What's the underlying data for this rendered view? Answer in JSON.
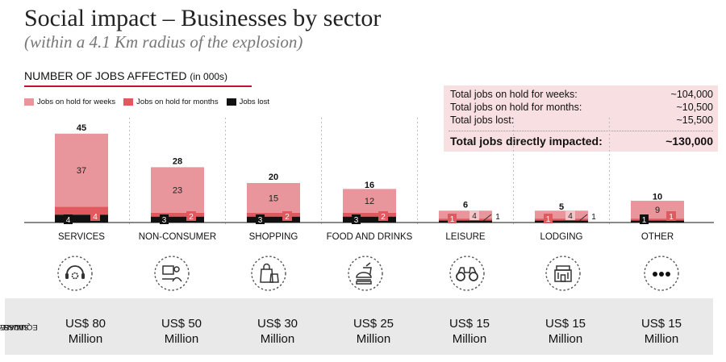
{
  "header": {
    "title": "Social impact – Businesses by sector",
    "subtitle": "(within a 4.1 Km radius of the explosion)",
    "section_label": "NUMBER OF JOBS AFFECTED",
    "section_unit": "(in 000s)"
  },
  "legend": {
    "weeks": "Jobs on hold for weeks",
    "months": "Jobs on hold for months",
    "lost": "Jobs lost"
  },
  "totals": [
    {
      "label": "Total jobs on hold for weeks:",
      "value": "~104,000"
    },
    {
      "label": "Total jobs on hold for months:",
      "value": "~10,500"
    },
    {
      "label": "Total jobs lost:",
      "value": "~15,500"
    },
    {
      "label": "Total jobs directly impacted:",
      "value": "~130,000"
    }
  ],
  "colors": {
    "weeks": "#e8959b",
    "months": "#e0595f",
    "lost": "#111111",
    "accent": "#c8102e"
  },
  "chart_data": {
    "type": "bar",
    "stacked": true,
    "categories": [
      "SERVICES",
      "NON-CONSUMER",
      "SHOPPING",
      "FOOD AND DRINKS",
      "LEISURE",
      "LODGING",
      "OTHER"
    ],
    "series": [
      {
        "name": "Jobs lost",
        "values": [
          4,
          3,
          3,
          3,
          1,
          1,
          1
        ]
      },
      {
        "name": "Jobs on hold for months",
        "values": [
          4,
          2,
          2,
          2,
          1,
          1,
          1
        ]
      },
      {
        "name": "Jobs on hold for weeks",
        "values": [
          37,
          23,
          15,
          12,
          4,
          4,
          9
        ]
      }
    ],
    "totals": [
      45,
      28,
      20,
      16,
      6,
      5,
      10
    ],
    "ylim": [
      0,
      45
    ],
    "legend_position": "top-left",
    "grid": false
  },
  "sectors": [
    {
      "icon": "headset-gear-icon",
      "loss": "US$ 80",
      "loss_unit": "Million"
    },
    {
      "icon": "person-at-desk-icon",
      "loss": "US$ 50",
      "loss_unit": "Million"
    },
    {
      "icon": "shopping-bags-icon",
      "loss": "US$ 30",
      "loss_unit": "Million"
    },
    {
      "icon": "burger-drink-icon",
      "loss": "US$ 25",
      "loss_unit": "Million"
    },
    {
      "icon": "binoculars-icon",
      "loss": "US$ 15",
      "loss_unit": "Million"
    },
    {
      "icon": "hotel-icon",
      "loss": "US$ 15",
      "loss_unit": "Million"
    },
    {
      "icon": "ellipsis-icon",
      "loss": "US$ 15",
      "loss_unit": "Million"
    }
  ],
  "loss_axis_label": [
    "EQUIVALENT",
    "SALARY",
    "LOSS"
  ]
}
